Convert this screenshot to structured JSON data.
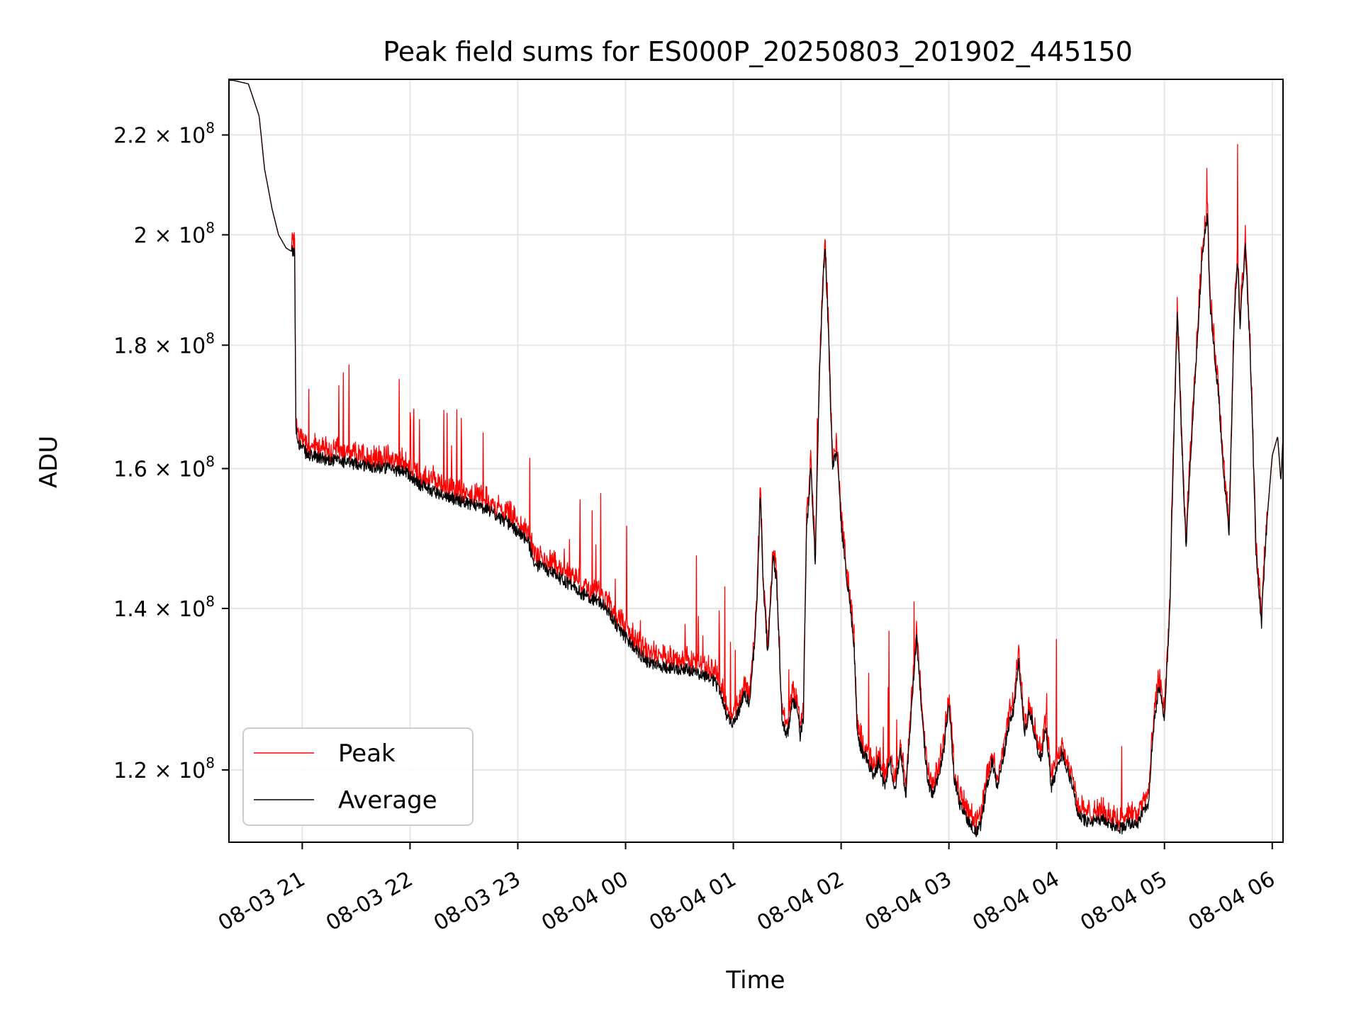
{
  "chart_data": {
    "type": "line",
    "title": "Peak field sums for ES000P_20250803_201902_445150",
    "xlabel": "Time",
    "ylabel": "ADU",
    "yscale": "log",
    "grid": true,
    "legend_position": "lower-left",
    "x_tick_labels": [
      "08-03 21",
      "08-03 22",
      "08-03 23",
      "08-04 00",
      "08-04 01",
      "08-04 02",
      "08-04 03",
      "08-04 04",
      "08-04 05",
      "08-04 06"
    ],
    "x_tick_hours": [
      21,
      22,
      23,
      24,
      25,
      26,
      27,
      28,
      29,
      30
    ],
    "xlim_hours": [
      20.32,
      30.1
    ],
    "ylim": [
      112000000,
      232000000
    ],
    "y_ticks": [
      {
        "value": 120000000,
        "mantissa": "1.2",
        "base": "10",
        "exponent": "8"
      },
      {
        "value": 140000000,
        "mantissa": "1.4",
        "base": "10",
        "exponent": "8"
      },
      {
        "value": 160000000,
        "mantissa": "1.6",
        "base": "10",
        "exponent": "8"
      },
      {
        "value": 180000000,
        "mantissa": "1.8",
        "base": "10",
        "exponent": "8"
      },
      {
        "value": 200000000,
        "mantissa": "2",
        "base": "10",
        "exponent": "8"
      },
      {
        "value": 220000000,
        "mantissa": "2.2",
        "base": "10",
        "exponent": "8"
      }
    ],
    "times_multiply_sign": "×",
    "series": [
      {
        "name": "Peak",
        "color": "#ff0000",
        "line_width": 1.3
      },
      {
        "name": "Average",
        "color": "#000000",
        "line_width": 1.3
      }
    ],
    "average_keypoints": [
      [
        20.32,
        232000000
      ],
      [
        20.5,
        231000000
      ],
      [
        20.6,
        224000000
      ],
      [
        20.65,
        213000000
      ],
      [
        20.72,
        205000000
      ],
      [
        20.78,
        200000000
      ],
      [
        20.85,
        197500000
      ],
      [
        20.93,
        196500000
      ],
      [
        20.94,
        166000000
      ],
      [
        20.97,
        164000000
      ],
      [
        21.05,
        162000000
      ],
      [
        21.2,
        161500000
      ],
      [
        21.4,
        161000000
      ],
      [
        21.6,
        160500000
      ],
      [
        21.8,
        160000000
      ],
      [
        21.95,
        159500000
      ],
      [
        22.1,
        157500000
      ],
      [
        22.3,
        156000000
      ],
      [
        22.5,
        155000000
      ],
      [
        22.7,
        154000000
      ],
      [
        22.9,
        152000000
      ],
      [
        23.05,
        150000000
      ],
      [
        23.1,
        149000000
      ],
      [
        23.15,
        146000000
      ],
      [
        23.3,
        145000000
      ],
      [
        23.6,
        142000000
      ],
      [
        23.8,
        140500000
      ],
      [
        23.95,
        137000000
      ],
      [
        24.1,
        134500000
      ],
      [
        24.2,
        133000000
      ],
      [
        24.3,
        132500000
      ],
      [
        24.6,
        132000000
      ],
      [
        24.8,
        131000000
      ],
      [
        24.85,
        130000000
      ],
      [
        24.95,
        126000000
      ],
      [
        25.0,
        125500000
      ],
      [
        25.05,
        127000000
      ],
      [
        25.1,
        129000000
      ],
      [
        25.15,
        128000000
      ],
      [
        25.2,
        136000000
      ],
      [
        25.22,
        141000000
      ],
      [
        25.25,
        156000000
      ],
      [
        25.28,
        142000000
      ],
      [
        25.32,
        134000000
      ],
      [
        25.37,
        147000000
      ],
      [
        25.4,
        144000000
      ],
      [
        25.45,
        126000000
      ],
      [
        25.5,
        124000000
      ],
      [
        25.55,
        128000000
      ],
      [
        25.6,
        127000000
      ],
      [
        25.62,
        124000000
      ],
      [
        25.65,
        126000000
      ],
      [
        25.68,
        151000000
      ],
      [
        25.72,
        160000000
      ],
      [
        25.76,
        146000000
      ],
      [
        25.8,
        175000000
      ],
      [
        25.83,
        190000000
      ],
      [
        25.85,
        198000000
      ],
      [
        25.88,
        183000000
      ],
      [
        25.92,
        160000000
      ],
      [
        25.96,
        163000000
      ],
      [
        26.0,
        152000000
      ],
      [
        26.03,
        147000000
      ],
      [
        26.07,
        142000000
      ],
      [
        26.12,
        135000000
      ],
      [
        26.15,
        124000000
      ],
      [
        26.2,
        122000000
      ],
      [
        26.25,
        121000000
      ],
      [
        26.3,
        119000000
      ],
      [
        26.35,
        121000000
      ],
      [
        26.4,
        118000000
      ],
      [
        26.45,
        121000000
      ],
      [
        26.5,
        118000000
      ],
      [
        26.55,
        122000000
      ],
      [
        26.6,
        117000000
      ],
      [
        26.65,
        127000000
      ],
      [
        26.7,
        136000000
      ],
      [
        26.75,
        126000000
      ],
      [
        26.8,
        119000000
      ],
      [
        26.85,
        117000000
      ],
      [
        26.9,
        119000000
      ],
      [
        26.95,
        122000000
      ],
      [
        27.0,
        128000000
      ],
      [
        27.05,
        119000000
      ],
      [
        27.1,
        116000000
      ],
      [
        27.15,
        115000000
      ],
      [
        27.2,
        114000000
      ],
      [
        27.25,
        113000000
      ],
      [
        27.3,
        114000000
      ],
      [
        27.35,
        118000000
      ],
      [
        27.4,
        121000000
      ],
      [
        27.45,
        118000000
      ],
      [
        27.5,
        121000000
      ],
      [
        27.55,
        125000000
      ],
      [
        27.6,
        127000000
      ],
      [
        27.65,
        133000000
      ],
      [
        27.7,
        124000000
      ],
      [
        27.75,
        127000000
      ],
      [
        27.8,
        124000000
      ],
      [
        27.85,
        121000000
      ],
      [
        27.9,
        125000000
      ],
      [
        27.95,
        118000000
      ],
      [
        28.0,
        120000000
      ],
      [
        28.05,
        122000000
      ],
      [
        28.1,
        120000000
      ],
      [
        28.15,
        118000000
      ],
      [
        28.2,
        115000000
      ],
      [
        28.3,
        114000000
      ],
      [
        28.4,
        114500000
      ],
      [
        28.5,
        114000000
      ],
      [
        28.6,
        113500000
      ],
      [
        28.65,
        114000000
      ],
      [
        28.75,
        114000000
      ],
      [
        28.8,
        115500000
      ],
      [
        28.85,
        116000000
      ],
      [
        28.9,
        125000000
      ],
      [
        28.95,
        130000000
      ],
      [
        29.0,
        126000000
      ],
      [
        29.05,
        140000000
      ],
      [
        29.08,
        160000000
      ],
      [
        29.12,
        186000000
      ],
      [
        29.15,
        168000000
      ],
      [
        29.2,
        148000000
      ],
      [
        29.25,
        164000000
      ],
      [
        29.3,
        179000000
      ],
      [
        29.35,
        196000000
      ],
      [
        29.4,
        204000000
      ],
      [
        29.42,
        188000000
      ],
      [
        29.45,
        181000000
      ],
      [
        29.5,
        172000000
      ],
      [
        29.55,
        159000000
      ],
      [
        29.6,
        150000000
      ],
      [
        29.65,
        186000000
      ],
      [
        29.68,
        195000000
      ],
      [
        29.7,
        183000000
      ],
      [
        29.75,
        198000000
      ],
      [
        29.8,
        176000000
      ],
      [
        29.85,
        147000000
      ],
      [
        29.9,
        138000000
      ],
      [
        29.95,
        152000000
      ],
      [
        30.0,
        162000000
      ],
      [
        30.05,
        165000000
      ],
      [
        30.08,
        158000000
      ],
      [
        30.1,
        165000000
      ]
    ]
  },
  "legend": {
    "peak_label": "Peak",
    "average_label": "Average"
  }
}
